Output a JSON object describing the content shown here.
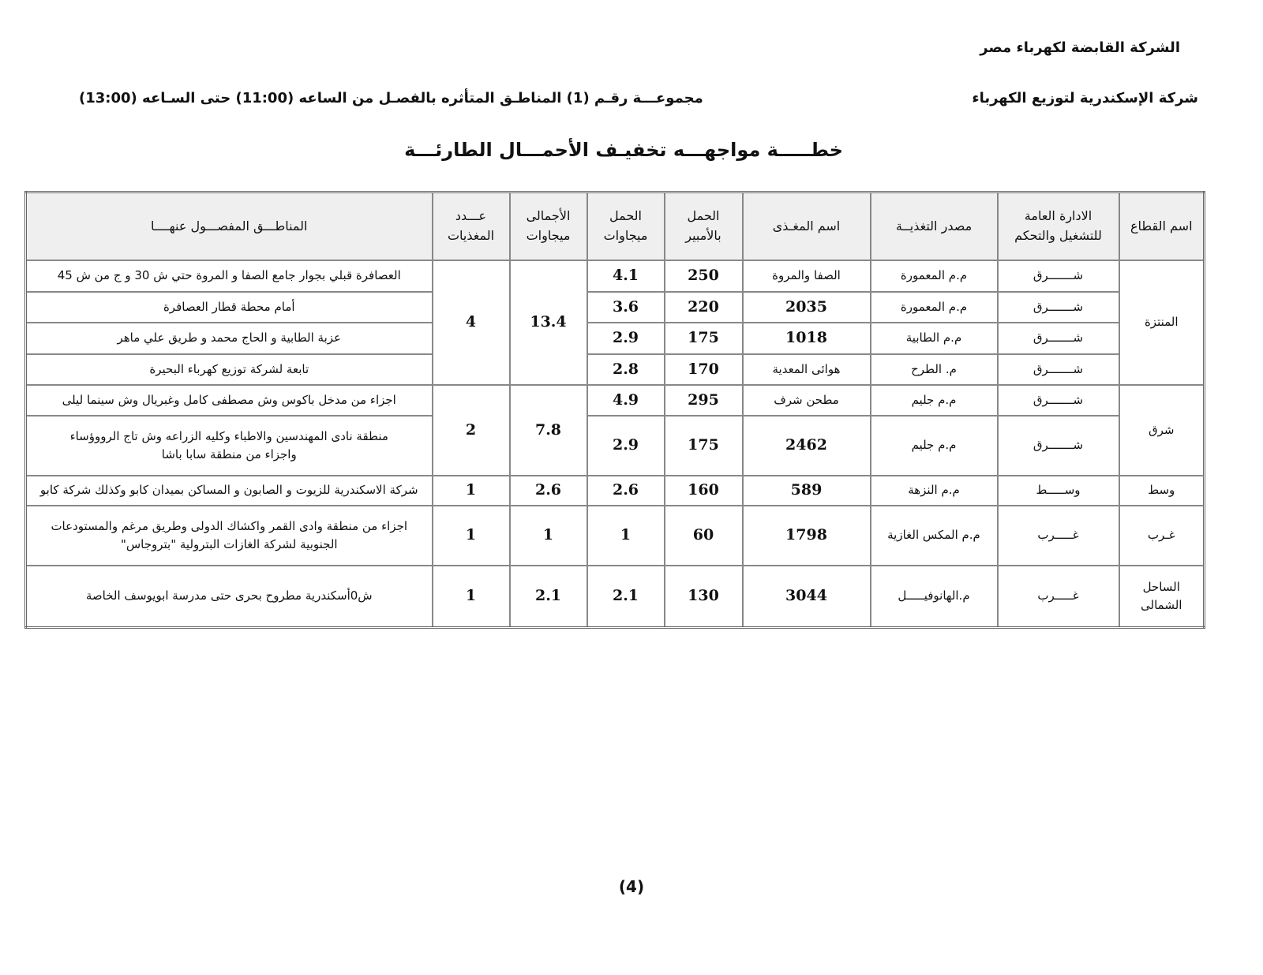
{
  "header": {
    "company": "الشركة القابضة لكهرباء مصر",
    "subsidiary": "شركة الإسكندرية لتوزيع الكهرباء",
    "group_line": "مجموعـــة رقـم (1) المناطـق المتأثره بالفصـل من الساعه (11:00) حتى السـاعه (13:00)",
    "title": "خطـــــة مواجهـــه تخفيـف الأحمـــال الطارئـــة"
  },
  "table": {
    "columns": [
      "اسم القطاع",
      "الادارة العامة\nللتشغيل والتحكم",
      "مصدر التغذيــة",
      "اسم المغـذى",
      "الحمل\nبالأمبير",
      "الحمل\nميجاوات",
      "الأجمالى\nميجاوات",
      "عـــدد\nالمغذيات",
      "المناطـــق المفصـــول عنهــــا"
    ],
    "groups": [
      {
        "sector": "المنتزة",
        "total": "13.4",
        "count": "4",
        "feeders": [
          {
            "admin": "شـــــــرق",
            "source": "م.م المعمورة",
            "feeder": "الصفا والمروة",
            "amps": "250",
            "mw": "4.1",
            "areas": "العصافرة قبلي بجوار جامع الصفا و المروة حتي ش 30 و ج من ش 45"
          },
          {
            "admin": "شـــــــرق",
            "source": "م.م المعمورة",
            "feeder": "2035",
            "amps": "220",
            "mw": "3.6",
            "areas": "أمام محطة قطار العصافرة"
          },
          {
            "admin": "شـــــــرق",
            "source": "م.م الطابية",
            "feeder": "1018",
            "amps": "175",
            "mw": "2.9",
            "areas": "عزبة الطابية و الحاج محمد و طريق علي ماهر"
          },
          {
            "admin": "شـــــــرق",
            "source": "م. الطرح",
            "feeder": "هوائى المعدية",
            "amps": "170",
            "mw": "2.8",
            "areas": "تابعة لشركة توزيع كهرباء البحيرة"
          }
        ]
      },
      {
        "sector": "شرق",
        "total": "7.8",
        "count": "2",
        "feeders": [
          {
            "admin": "شـــــــرق",
            "source": "م.م جليم",
            "feeder": "مطحن شرف",
            "amps": "295",
            "mw": "4.9",
            "areas": "اجزاء من مدخل باكوس وش مصطفى كامل وغبريال وش سينما ليلى"
          },
          {
            "admin": "شـــــــرق",
            "source": "م.م جليم",
            "feeder": "2462",
            "amps": "175",
            "mw": "2.9",
            "areas": "منطقة نادى المهندسين والاطباء وكليه الزراعه وش تاج الرووؤساء\nواجزاء من منطقة سابا باشا"
          }
        ]
      },
      {
        "sector": "وسط",
        "total": "2.6",
        "count": "1",
        "feeders": [
          {
            "admin": "وســـــط",
            "source": "م.م النزهة",
            "feeder": "589",
            "amps": "160",
            "mw": "2.6",
            "areas": "شركة الاسكندرية للزيوت و الصابون و المساكن بميدان كابو وكذلك شركة كابو"
          }
        ]
      },
      {
        "sector": "غـرب",
        "total": "1",
        "count": "1",
        "feeders": [
          {
            "admin": "غـــــرب",
            "source": "م.م المكس الغازية",
            "feeder": "1798",
            "amps": "60",
            "mw": "1",
            "areas": "اجزاء من منطقة وادى القمر واكشاك الدولى وطريق مرغم والمستودعات\nالجنوبية لشركة الغازات البترولية \"بتروجاس\""
          }
        ]
      },
      {
        "sector": "الساحل\nالشمالى",
        "total": "2.1",
        "count": "1",
        "feeders": [
          {
            "admin": "غـــــرب",
            "source": "م.الهانوفيـــــل",
            "feeder": "3044",
            "amps": "130",
            "mw": "2.1",
            "areas": "ش0أسكندرية مطروح بحرى حتى مدرسة ابويوسف الخاصة"
          }
        ]
      }
    ]
  },
  "footer": {
    "page_number": "(4)"
  }
}
